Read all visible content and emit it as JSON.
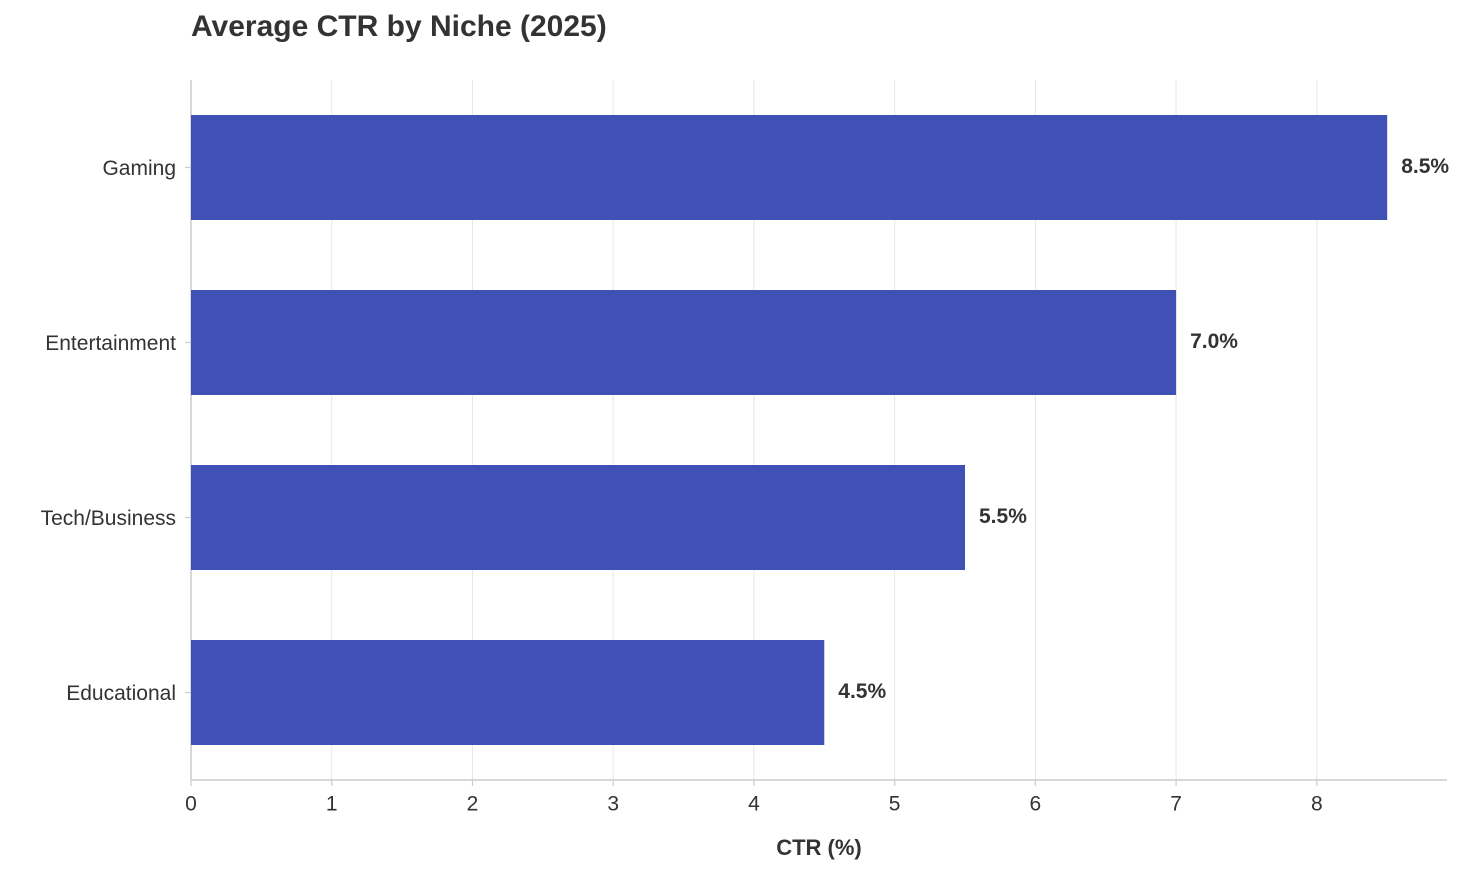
{
  "chart_data": {
    "type": "bar",
    "orientation": "horizontal",
    "title": "Average CTR by Niche (2025)",
    "x_label": "CTR (%)",
    "categories": [
      "Gaming",
      "Entertainment",
      "Tech/Business",
      "Educational"
    ],
    "values": [
      8.5,
      7.0,
      5.5,
      4.5
    ],
    "value_labels": [
      "8.5%",
      "7.0%",
      "5.5%",
      "4.5%"
    ],
    "color": "#3f51b5",
    "xlim": [
      0,
      8.925
    ],
    "xticks": [
      0,
      1,
      2,
      3,
      4,
      5,
      6,
      7,
      8
    ],
    "grid": true
  }
}
